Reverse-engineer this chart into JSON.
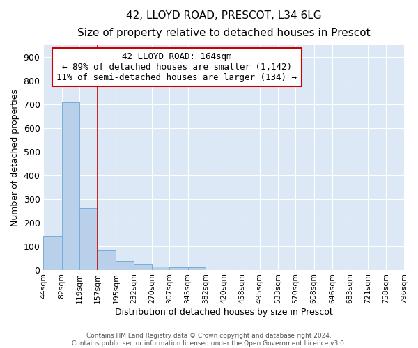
{
  "title1": "42, LLOYD ROAD, PRESCOT, L34 6LG",
  "title2": "Size of property relative to detached houses in Prescot",
  "xlabel": "Distribution of detached houses by size in Prescot",
  "ylabel": "Number of detached properties",
  "bin_edges": [
    44,
    82,
    119,
    157,
    195,
    232,
    270,
    307,
    345,
    382,
    420,
    458,
    495,
    533,
    570,
    608,
    646,
    683,
    721,
    758,
    796
  ],
  "bar_heights": [
    144,
    711,
    262,
    83,
    37,
    22,
    13,
    11,
    11,
    0,
    0,
    0,
    0,
    0,
    0,
    0,
    0,
    0,
    0,
    0
  ],
  "bar_color": "#b8d0ea",
  "bar_edge_color": "#7aadd4",
  "bg_color": "#dce8f5",
  "grid_color": "#ffffff",
  "red_line_x": 157,
  "red_line_color": "#cc0000",
  "annotation_line1": "42 LLOYD ROAD: 164sqm",
  "annotation_line2": "← 89% of detached houses are smaller (1,142)",
  "annotation_line3": "11% of semi-detached houses are larger (134) →",
  "annotation_box_color": "#ffffff",
  "annotation_box_edge_color": "#cc0000",
  "footer_text": "Contains HM Land Registry data © Crown copyright and database right 2024.\nContains public sector information licensed under the Open Government Licence v3.0.",
  "ylim": [
    0,
    950
  ],
  "yticks": [
    0,
    100,
    200,
    300,
    400,
    500,
    600,
    700,
    800,
    900
  ],
  "tick_labels": [
    "44sqm",
    "82sqm",
    "119sqm",
    "157sqm",
    "195sqm",
    "232sqm",
    "270sqm",
    "307sqm",
    "345sqm",
    "382sqm",
    "420sqm",
    "458sqm",
    "495sqm",
    "533sqm",
    "570sqm",
    "608sqm",
    "646sqm",
    "683sqm",
    "721sqm",
    "758sqm",
    "796sqm"
  ],
  "fig_bg": "#ffffff",
  "title1_fontsize": 11,
  "title2_fontsize": 9.5
}
